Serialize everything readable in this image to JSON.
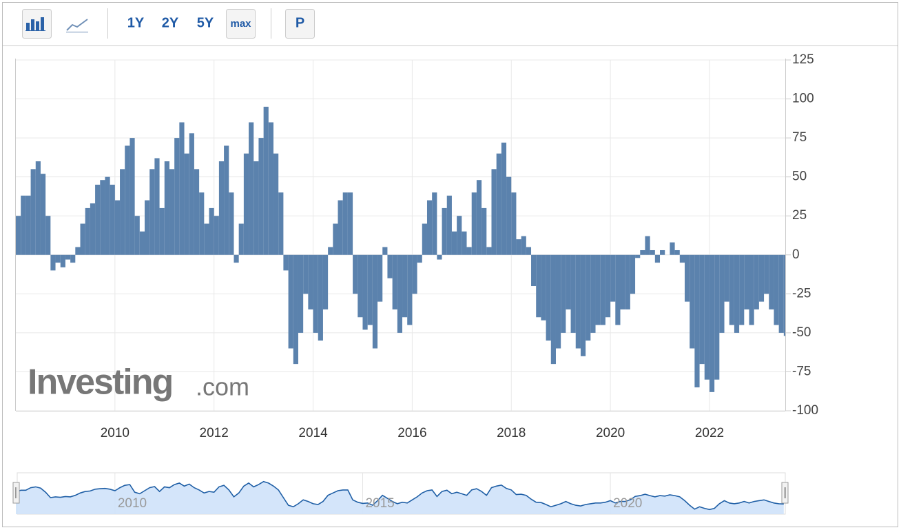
{
  "toolbar": {
    "buttons": [
      "1Y",
      "2Y",
      "5Y",
      "max",
      "P"
    ]
  },
  "watermark": {
    "brand": "Investing",
    "suffix": ".com"
  },
  "chart_data": {
    "type": "bar",
    "color": "#5b82ad",
    "grid": true,
    "x": [
      2008.0,
      2008.1,
      2008.2,
      2008.3,
      2008.4,
      2008.5,
      2008.6,
      2008.7,
      2008.8,
      2008.9,
      2009.0,
      2009.1,
      2009.2,
      2009.3,
      2009.4,
      2009.5,
      2009.6,
      2009.7,
      2009.8,
      2009.9,
      2010.0,
      2010.1,
      2010.2,
      2010.3,
      2010.4,
      2010.5,
      2010.6,
      2010.7,
      2010.8,
      2010.9,
      2011.0,
      2011.1,
      2011.2,
      2011.3,
      2011.4,
      2011.5,
      2011.6,
      2011.7,
      2011.8,
      2011.9,
      2012.0,
      2012.1,
      2012.2,
      2012.3,
      2012.4,
      2012.5,
      2012.6,
      2012.7,
      2012.8,
      2012.9,
      2013.0,
      2013.1,
      2013.2,
      2013.3,
      2013.4,
      2013.5,
      2013.6,
      2013.7,
      2013.8,
      2013.9,
      2014.0,
      2014.1,
      2014.2,
      2014.3,
      2014.4,
      2014.5,
      2014.6,
      2014.7,
      2014.8,
      2014.9,
      2015.0,
      2015.1,
      2015.2,
      2015.3,
      2015.4,
      2015.5,
      2015.6,
      2015.7,
      2015.8,
      2015.9,
      2016.0,
      2016.1,
      2016.2,
      2016.3,
      2016.4,
      2016.5,
      2016.6,
      2016.7,
      2016.8,
      2016.9,
      2017.0,
      2017.1,
      2017.2,
      2017.3,
      2017.4,
      2017.5,
      2017.6,
      2017.7,
      2017.8,
      2017.9,
      2018.0,
      2018.1,
      2018.2,
      2018.3,
      2018.4,
      2018.5,
      2018.6,
      2018.7,
      2018.8,
      2018.9,
      2019.0,
      2019.1,
      2019.2,
      2019.3,
      2019.4,
      2019.5,
      2019.6,
      2019.7,
      2019.8,
      2019.9,
      2020.0,
      2020.1,
      2020.2,
      2020.3,
      2020.4,
      2020.5,
      2020.6,
      2020.7,
      2020.8,
      2020.9,
      2021.0,
      2021.1,
      2021.2,
      2021.3,
      2021.4,
      2021.5,
      2021.6,
      2021.7,
      2021.8,
      2021.9,
      2022.0,
      2022.1,
      2022.2,
      2022.3,
      2022.4,
      2022.5,
      2022.6,
      2022.7,
      2022.8,
      2022.9,
      2023.0,
      2023.1,
      2023.2,
      2023.3,
      2023.4,
      2023.5
    ],
    "values": [
      25,
      38,
      38,
      55,
      60,
      52,
      25,
      -10,
      -5,
      -8,
      -3,
      -5,
      5,
      20,
      30,
      33,
      45,
      48,
      50,
      45,
      35,
      55,
      70,
      75,
      25,
      15,
      35,
      55,
      62,
      30,
      60,
      55,
      75,
      85,
      65,
      78,
      55,
      40,
      20,
      30,
      25,
      60,
      70,
      40,
      -5,
      20,
      65,
      85,
      60,
      75,
      95,
      85,
      65,
      40,
      -10,
      -60,
      -70,
      -50,
      -25,
      -35,
      -50,
      -55,
      -35,
      5,
      20,
      35,
      40,
      40,
      -25,
      -40,
      -48,
      -45,
      -60,
      -30,
      5,
      -15,
      -35,
      -50,
      -40,
      -45,
      -25,
      -5,
      20,
      35,
      40,
      -3,
      30,
      38,
      15,
      25,
      15,
      5,
      40,
      48,
      30,
      5,
      55,
      65,
      72,
      50,
      40,
      10,
      12,
      5,
      -20,
      -40,
      -42,
      -55,
      -70,
      -60,
      -50,
      -35,
      -50,
      -60,
      -65,
      -55,
      -50,
      -45,
      -45,
      -40,
      -30,
      -45,
      -35,
      -35,
      -25,
      -2,
      3,
      12,
      3,
      -5,
      3,
      0,
      8,
      3,
      -5,
      -30,
      -60,
      -85,
      -70,
      -80,
      -88,
      -80,
      -50,
      -30,
      -45,
      -50,
      -45,
      -35,
      -45,
      -35,
      -30,
      -25,
      -35,
      -45,
      -50,
      -52
    ],
    "xlim": [
      2008.0,
      2023.53
    ],
    "xticks": [
      2010,
      2012,
      2014,
      2016,
      2018,
      2020,
      2022
    ],
    "ylim": [
      -100,
      125
    ],
    "yticks": [
      125,
      100,
      75,
      50,
      25,
      0,
      -25,
      -50,
      -75,
      -100
    ],
    "navigator_ticks": [
      2010,
      2015,
      2020
    ]
  }
}
